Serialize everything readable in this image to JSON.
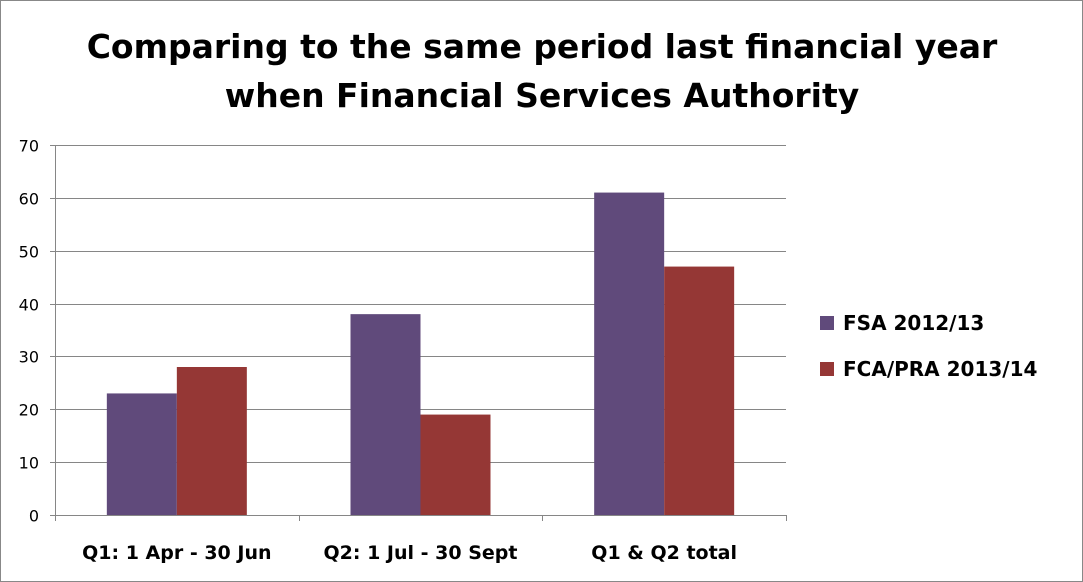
{
  "chart_data": {
    "type": "bar",
    "title": [
      "Comparing to the same period last financial year",
      "when Financial Services Authority"
    ],
    "categories": [
      "Q1: 1 Apr - 30 Jun",
      "Q2: 1 Jul - 30 Sept",
      "Q1 & Q2 total"
    ],
    "series": [
      {
        "name": "FSA 2012/13",
        "values": [
          23,
          38,
          61
        ],
        "color": "#604A7B"
      },
      {
        "name": "FCA/PRA 2013/14",
        "values": [
          28,
          19,
          47
        ],
        "color": "#953735"
      }
    ],
    "ylim": [
      0,
      70
    ],
    "yticks": [
      0,
      10,
      20,
      30,
      40,
      50,
      60,
      70
    ],
    "grid": true,
    "legend": "right",
    "xlabel": "",
    "ylabel": ""
  }
}
